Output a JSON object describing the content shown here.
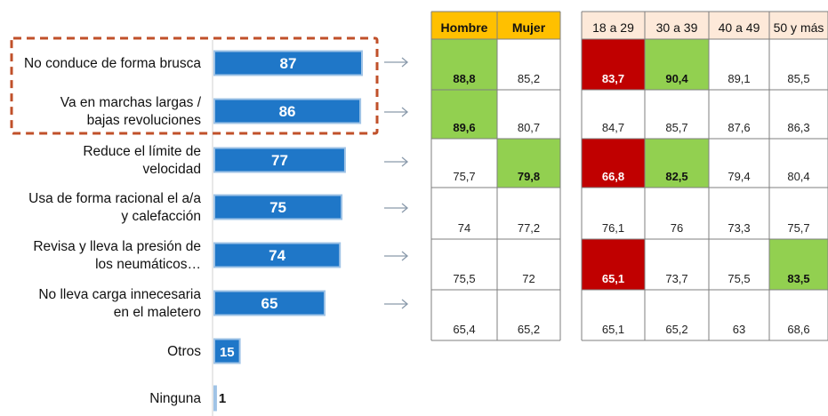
{
  "chart_data": [
    {
      "type": "bar",
      "orientation": "horizontal",
      "categories": [
        [
          "No conduce de forma brusca"
        ],
        [
          "Va en marchas largas /",
          "bajas revoluciones"
        ],
        [
          "Reduce el límite de",
          "velocidad"
        ],
        [
          "Usa de forma racional el a/a",
          "y calefacción"
        ],
        [
          "Revisa y lleva la presión de",
          "los neumáticos…"
        ],
        [
          "No lleva carga innecesaria",
          "en el maletero"
        ],
        [
          "Otros"
        ],
        [
          "Ninguna"
        ]
      ],
      "values": [
        87,
        86,
        77,
        75,
        74,
        65,
        15,
        1
      ],
      "data_labels": [
        "87",
        "86",
        "77",
        "75",
        "74",
        "65",
        "15",
        "1"
      ],
      "highlighted_categories": [
        0,
        1
      ],
      "colors": {
        "bar": "#1f77c8",
        "bar_border": "#9fc3e6",
        "highlight_box": "#c0502a",
        "arrow": "#8a9aab"
      }
    },
    {
      "type": "table",
      "groups": [
        {
          "columns": [
            "Hombre",
            "Mujer"
          ],
          "header_color": "#ffc000",
          "header_bold": true,
          "rows": [
            [
              "88,8",
              "85,2"
            ],
            [
              "89,6",
              "80,7"
            ],
            [
              "75,7",
              "79,8"
            ],
            [
              "74",
              "77,2"
            ],
            [
              "75,5",
              "72"
            ],
            [
              "65,4",
              "65,2"
            ]
          ]
        },
        {
          "columns": [
            "18 a 29",
            "30 a 39",
            "40 a 49",
            "50 y más"
          ],
          "header_color": "#fde9d9",
          "header_bold": false,
          "rows": [
            [
              "83,7",
              "90,4",
              "89,1",
              "85,5"
            ],
            [
              "84,7",
              "85,7",
              "87,6",
              "86,3"
            ],
            [
              "66,8",
              "82,5",
              "79,4",
              "80,4"
            ],
            [
              "76,1",
              "76",
              "73,3",
              "75,7"
            ],
            [
              "65,1",
              "73,7",
              "75,5",
              "83,5"
            ],
            [
              "65,1",
              "65,2",
              "63",
              "68,6"
            ]
          ]
        }
      ],
      "highlights": {
        "green": [
          [
            0,
            0,
            0
          ],
          [
            0,
            1,
            0
          ],
          [
            0,
            2,
            1
          ],
          [
            1,
            0,
            1
          ],
          [
            1,
            2,
            1
          ],
          [
            1,
            4,
            3
          ]
        ],
        "red": [
          [
            1,
            0,
            0
          ],
          [
            1,
            2,
            0
          ],
          [
            1,
            4,
            0
          ]
        ]
      },
      "colors": {
        "green": "#92d050",
        "red": "#c00000",
        "grid": "#7f7f7f"
      }
    }
  ]
}
